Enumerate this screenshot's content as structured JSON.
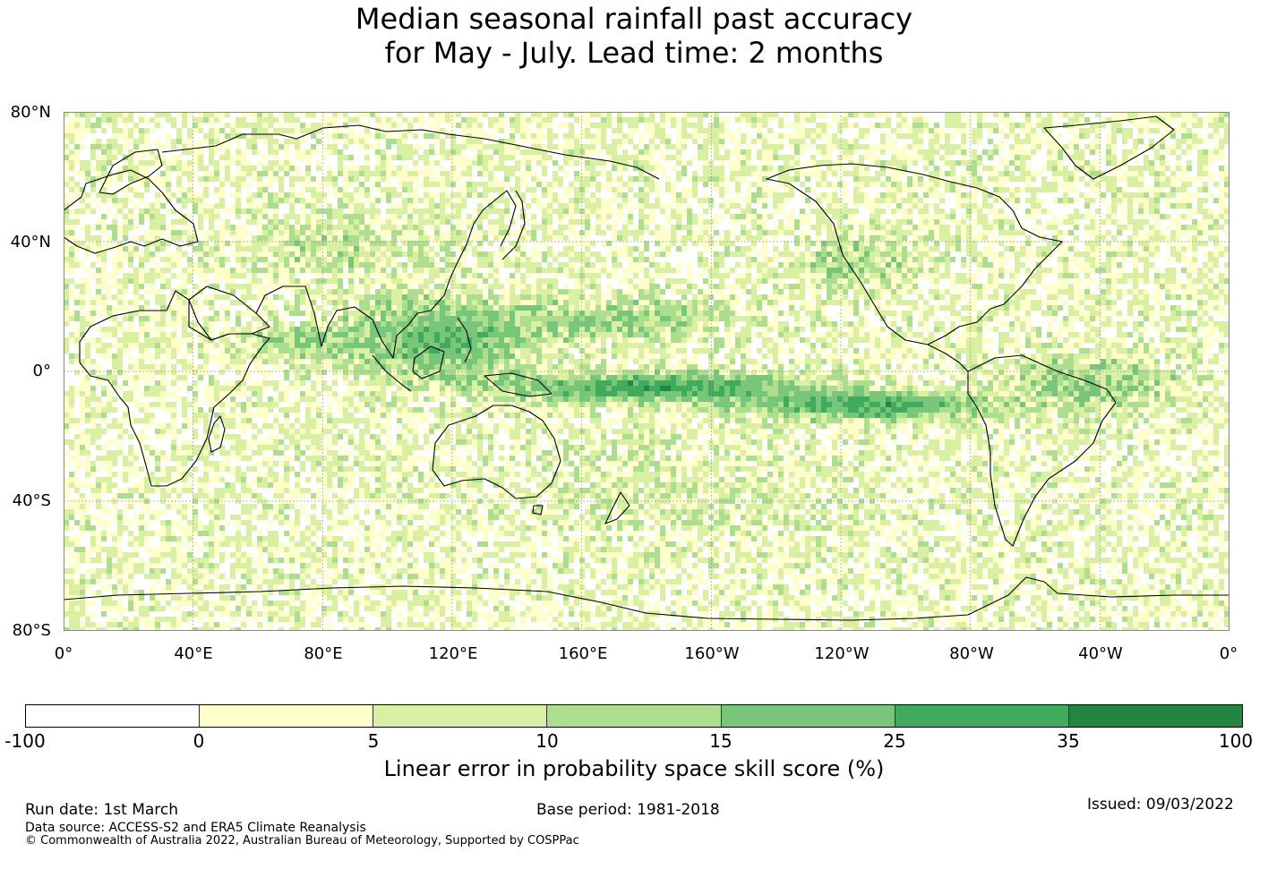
{
  "title": {
    "line1": "Median seasonal rainfall past accuracy",
    "line2": "for May - July. Lead time: 2 months"
  },
  "map": {
    "projection": "equirectangular",
    "central_longitude": "180",
    "lat_labels": [
      "80°N",
      "40°N",
      "0°",
      "40°S",
      "80°S"
    ],
    "lon_labels": [
      "0°",
      "40°E",
      "80°E",
      "120°E",
      "160°E",
      "160°W",
      "120°W",
      "80°W",
      "40°W",
      "0°"
    ],
    "grid": "on (dotted)"
  },
  "colorbar": {
    "ticks": [
      "-100",
      "0",
      "5",
      "10",
      "15",
      "25",
      "35",
      "100"
    ],
    "colors": [
      "#ffffff",
      "#ffffcc",
      "#d9f0a3",
      "#addd8e",
      "#78c679",
      "#41ab5d",
      "#238443"
    ],
    "label": "Linear error in probability space skill score (%)"
  },
  "footer": {
    "run_date": "Run date: 1st March",
    "base_period": "Base period: 1981-2018",
    "issued": "Issued: 09/03/2022",
    "data_source": "Data source: ACCESS-S2 and ERA5 Climate Reanalysis",
    "copyright": "© Commonwealth of Australia 2022, Australian Bureau of Meteorology, Supported by COSPPac"
  }
}
